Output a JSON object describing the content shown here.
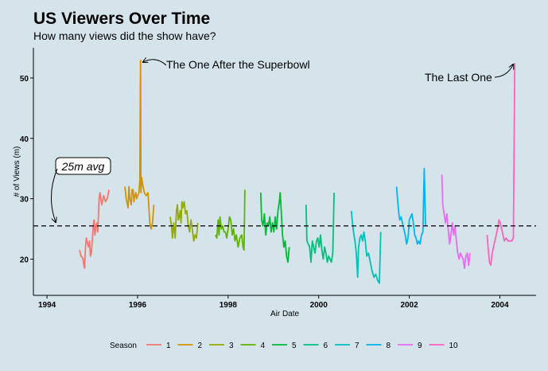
{
  "chart_data": {
    "type": "line",
    "title": "US Viewers Over Time",
    "subtitle": "How many views did the show have?",
    "xlabel": "Air Date",
    "ylabel": "# of Views (m)",
    "xlim": [
      1993.7,
      2004.8
    ],
    "ylim": [
      14,
      55
    ],
    "x_ticks": [
      1994,
      1996,
      1998,
      2000,
      2002,
      2004
    ],
    "y_ticks": [
      20,
      30,
      40,
      50
    ],
    "grid": false,
    "legend": {
      "title": "Season",
      "placement": "bottom",
      "entries": [
        "1",
        "2",
        "3",
        "4",
        "5",
        "6",
        "7",
        "8",
        "9",
        "10"
      ]
    },
    "reference_line": {
      "y": 25.5,
      "style": "dashed",
      "label": "25m avg"
    },
    "annotations": [
      {
        "text": "The One After the Superbowl",
        "x": 1996.07,
        "y": 52.9
      },
      {
        "text": "The Last One",
        "x": 2004.33,
        "y": 52.5
      }
    ],
    "series": [
      {
        "name": "1",
        "color": "#f8766d",
        "points": [
          [
            1994.72,
            21.5
          ],
          [
            1994.75,
            20.5
          ],
          [
            1994.79,
            20.2
          ],
          [
            1994.81,
            19.2
          ],
          [
            1994.83,
            18.5
          ],
          [
            1994.85,
            22.0
          ],
          [
            1994.87,
            23.5
          ],
          [
            1994.9,
            22.5
          ],
          [
            1994.92,
            22.0
          ],
          [
            1994.94,
            23.0
          ],
          [
            1994.96,
            20.5
          ],
          [
            1994.98,
            21.0
          ],
          [
            1995.0,
            23.0
          ],
          [
            1995.02,
            25.5
          ],
          [
            1995.04,
            26.5
          ],
          [
            1995.06,
            24.0
          ],
          [
            1995.08,
            25.5
          ],
          [
            1995.1,
            26.0
          ],
          [
            1995.12,
            24.5
          ],
          [
            1995.15,
            30.0
          ],
          [
            1995.17,
            31.0
          ],
          [
            1995.21,
            29.0
          ],
          [
            1995.25,
            30.5
          ],
          [
            1995.29,
            29.5
          ],
          [
            1995.33,
            30.0
          ],
          [
            1995.37,
            31.5
          ]
        ]
      },
      {
        "name": "2",
        "color": "#d39200",
        "points": [
          [
            1995.72,
            32.0
          ],
          [
            1995.75,
            30.0
          ],
          [
            1995.79,
            28.5
          ],
          [
            1995.81,
            32.0
          ],
          [
            1995.83,
            30.0
          ],
          [
            1995.86,
            29.0
          ],
          [
            1995.88,
            31.5
          ],
          [
            1995.9,
            31.5
          ],
          [
            1995.92,
            29.5
          ],
          [
            1995.94,
            30.5
          ],
          [
            1995.96,
            31.0
          ],
          [
            1995.98,
            30.0
          ],
          [
            1996.0,
            30.5
          ],
          [
            1996.03,
            31.0
          ],
          [
            1996.05,
            33.0
          ],
          [
            1996.065,
            52.9
          ],
          [
            1996.075,
            31.0
          ],
          [
            1996.09,
            33.5
          ],
          [
            1996.11,
            32.5
          ],
          [
            1996.15,
            31.0
          ],
          [
            1996.19,
            30.5
          ],
          [
            1996.23,
            31.0
          ],
          [
            1996.27,
            26.0
          ],
          [
            1996.3,
            25.0
          ],
          [
            1996.33,
            26.0
          ],
          [
            1996.36,
            29.0
          ]
        ]
      },
      {
        "name": "3",
        "color": "#93aa00",
        "points": [
          [
            1996.72,
            27.0
          ],
          [
            1996.75,
            25.5
          ],
          [
            1996.77,
            23.5
          ],
          [
            1996.8,
            26.0
          ],
          [
            1996.83,
            23.5
          ],
          [
            1996.86,
            28.0
          ],
          [
            1996.88,
            29.0
          ],
          [
            1996.9,
            26.5
          ],
          [
            1996.92,
            27.0
          ],
          [
            1996.94,
            28.0
          ],
          [
            1996.96,
            26.0
          ],
          [
            1996.98,
            29.5
          ],
          [
            1997.0,
            28.5
          ],
          [
            1997.03,
            29.5
          ],
          [
            1997.06,
            27.5
          ],
          [
            1997.09,
            28.0
          ],
          [
            1997.12,
            25.5
          ],
          [
            1997.15,
            24.5
          ],
          [
            1997.18,
            26.5
          ],
          [
            1997.21,
            25.0
          ],
          [
            1997.24,
            23.0
          ],
          [
            1997.27,
            24.0
          ],
          [
            1997.3,
            23.5
          ],
          [
            1997.33,
            26.0
          ]
        ]
      },
      {
        "name": "4",
        "color": "#5eb300",
        "points": [
          [
            1997.72,
            24.0
          ],
          [
            1997.75,
            23.5
          ],
          [
            1997.78,
            26.5
          ],
          [
            1997.8,
            24.0
          ],
          [
            1997.82,
            27.0
          ],
          [
            1997.85,
            25.0
          ],
          [
            1997.88,
            25.5
          ],
          [
            1997.91,
            24.5
          ],
          [
            1997.94,
            24.5
          ],
          [
            1997.97,
            23.5
          ],
          [
            1998.0,
            25.0
          ],
          [
            1998.03,
            27.0
          ],
          [
            1998.06,
            26.5
          ],
          [
            1998.09,
            24.0
          ],
          [
            1998.12,
            25.0
          ],
          [
            1998.15,
            23.0
          ],
          [
            1998.18,
            24.0
          ],
          [
            1998.22,
            22.0
          ],
          [
            1998.26,
            23.5
          ],
          [
            1998.3,
            24.0
          ],
          [
            1998.33,
            22.0
          ],
          [
            1998.35,
            21.5
          ],
          [
            1998.37,
            31.5
          ]
        ]
      },
      {
        "name": "5",
        "color": "#00ba38",
        "points": [
          [
            1998.72,
            31.0
          ],
          [
            1998.74,
            26.5
          ],
          [
            1998.77,
            25.5
          ],
          [
            1998.8,
            27.5
          ],
          [
            1998.83,
            24.0
          ],
          [
            1998.86,
            26.0
          ],
          [
            1998.89,
            25.5
          ],
          [
            1998.92,
            27.0
          ],
          [
            1998.95,
            24.5
          ],
          [
            1998.98,
            26.0
          ],
          [
            1999.01,
            24.5
          ],
          [
            1999.04,
            27.0
          ],
          [
            1999.07,
            25.0
          ],
          [
            1999.1,
            28.0
          ],
          [
            1999.13,
            29.5
          ],
          [
            1999.15,
            31.0
          ],
          [
            1999.17,
            28.5
          ],
          [
            1999.2,
            24.0
          ],
          [
            1999.23,
            22.0
          ],
          [
            1999.26,
            23.0
          ],
          [
            1999.29,
            20.5
          ],
          [
            1999.32,
            19.5
          ],
          [
            1999.35,
            22.0
          ]
        ]
      },
      {
        "name": "6",
        "color": "#00bf7d",
        "points": [
          [
            1999.72,
            29.0
          ],
          [
            1999.74,
            23.0
          ],
          [
            1999.77,
            22.5
          ],
          [
            1999.8,
            22.0
          ],
          [
            1999.83,
            19.5
          ],
          [
            1999.86,
            23.0
          ],
          [
            1999.89,
            22.0
          ],
          [
            1999.92,
            21.0
          ],
          [
            1999.95,
            23.0
          ],
          [
            1999.98,
            23.5
          ],
          [
            2000.01,
            22.0
          ],
          [
            2000.04,
            24.0
          ],
          [
            2000.07,
            21.5
          ],
          [
            2000.1,
            20.0
          ],
          [
            2000.13,
            22.0
          ],
          [
            2000.16,
            21.0
          ],
          [
            2000.19,
            19.5
          ],
          [
            2000.22,
            20.5
          ],
          [
            2000.25,
            20.0
          ],
          [
            2000.28,
            19.5
          ],
          [
            2000.31,
            21.0
          ],
          [
            2000.34,
            31.0
          ]
        ]
      },
      {
        "name": "7",
        "color": "#00c0b8",
        "points": [
          [
            2000.72,
            28.0
          ],
          [
            2000.74,
            26.5
          ],
          [
            2000.77,
            24.5
          ],
          [
            2000.8,
            23.0
          ],
          [
            2000.83,
            21.0
          ],
          [
            2000.86,
            17.0
          ],
          [
            2000.88,
            22.0
          ],
          [
            2000.91,
            23.5
          ],
          [
            2000.94,
            24.0
          ],
          [
            2000.97,
            23.0
          ],
          [
            2001.0,
            24.5
          ],
          [
            2001.03,
            23.0
          ],
          [
            2001.06,
            20.5
          ],
          [
            2001.1,
            21.0
          ],
          [
            2001.14,
            19.5
          ],
          [
            2001.18,
            18.0
          ],
          [
            2001.22,
            17.0
          ],
          [
            2001.26,
            17.5
          ],
          [
            2001.3,
            16.5
          ],
          [
            2001.34,
            16.0
          ],
          [
            2001.37,
            24.5
          ]
        ]
      },
      {
        "name": "8",
        "color": "#00b4f0",
        "points": [
          [
            2001.72,
            32.0
          ],
          [
            2001.74,
            30.0
          ],
          [
            2001.77,
            27.5
          ],
          [
            2001.79,
            26.5
          ],
          [
            2001.82,
            27.0
          ],
          [
            2001.85,
            26.0
          ],
          [
            2001.88,
            25.0
          ],
          [
            2001.91,
            24.0
          ],
          [
            2001.94,
            22.5
          ],
          [
            2001.96,
            23.0
          ],
          [
            2001.98,
            24.0
          ],
          [
            2002.0,
            26.5
          ],
          [
            2002.03,
            27.0
          ],
          [
            2002.06,
            27.5
          ],
          [
            2002.09,
            26.0
          ],
          [
            2002.12,
            24.0
          ],
          [
            2002.15,
            23.5
          ],
          [
            2002.18,
            22.5
          ],
          [
            2002.21,
            23.0
          ],
          [
            2002.24,
            22.5
          ],
          [
            2002.27,
            24.0
          ],
          [
            2002.3,
            24.5
          ],
          [
            2002.33,
            35.0
          ],
          [
            2002.36,
            25.5
          ]
        ]
      },
      {
        "name": "9",
        "color": "#e76bf3",
        "points": [
          [
            2002.72,
            34.0
          ],
          [
            2002.74,
            29.0
          ],
          [
            2002.77,
            27.5
          ],
          [
            2002.8,
            26.0
          ],
          [
            2002.83,
            27.5
          ],
          [
            2002.86,
            25.0
          ],
          [
            2002.89,
            22.5
          ],
          [
            2002.92,
            24.0
          ],
          [
            2002.95,
            26.0
          ],
          [
            2002.98,
            24.0
          ],
          [
            2003.01,
            25.5
          ],
          [
            2003.04,
            23.0
          ],
          [
            2003.07,
            21.0
          ],
          [
            2003.1,
            20.0
          ],
          [
            2003.13,
            21.0
          ],
          [
            2003.16,
            20.5
          ],
          [
            2003.19,
            20.0
          ],
          [
            2003.22,
            18.5
          ],
          [
            2003.25,
            20.5
          ],
          [
            2003.28,
            21.0
          ],
          [
            2003.31,
            19.0
          ],
          [
            2003.34,
            21.0
          ]
        ]
      },
      {
        "name": "10",
        "color": "#ff62bc",
        "points": [
          [
            2003.72,
            24.0
          ],
          [
            2003.74,
            22.0
          ],
          [
            2003.77,
            19.5
          ],
          [
            2003.8,
            19.0
          ],
          [
            2003.83,
            21.0
          ],
          [
            2003.86,
            22.0
          ],
          [
            2003.89,
            23.0
          ],
          [
            2003.92,
            24.0
          ],
          [
            2003.95,
            25.0
          ],
          [
            2003.98,
            26.5
          ],
          [
            2004.01,
            26.0
          ],
          [
            2004.04,
            25.0
          ],
          [
            2004.07,
            24.0
          ],
          [
            2004.1,
            23.0
          ],
          [
            2004.14,
            23.5
          ],
          [
            2004.18,
            23.0
          ],
          [
            2004.22,
            23.0
          ],
          [
            2004.26,
            23.0
          ],
          [
            2004.3,
            23.5
          ],
          [
            2004.33,
            52.5
          ]
        ]
      }
    ]
  }
}
